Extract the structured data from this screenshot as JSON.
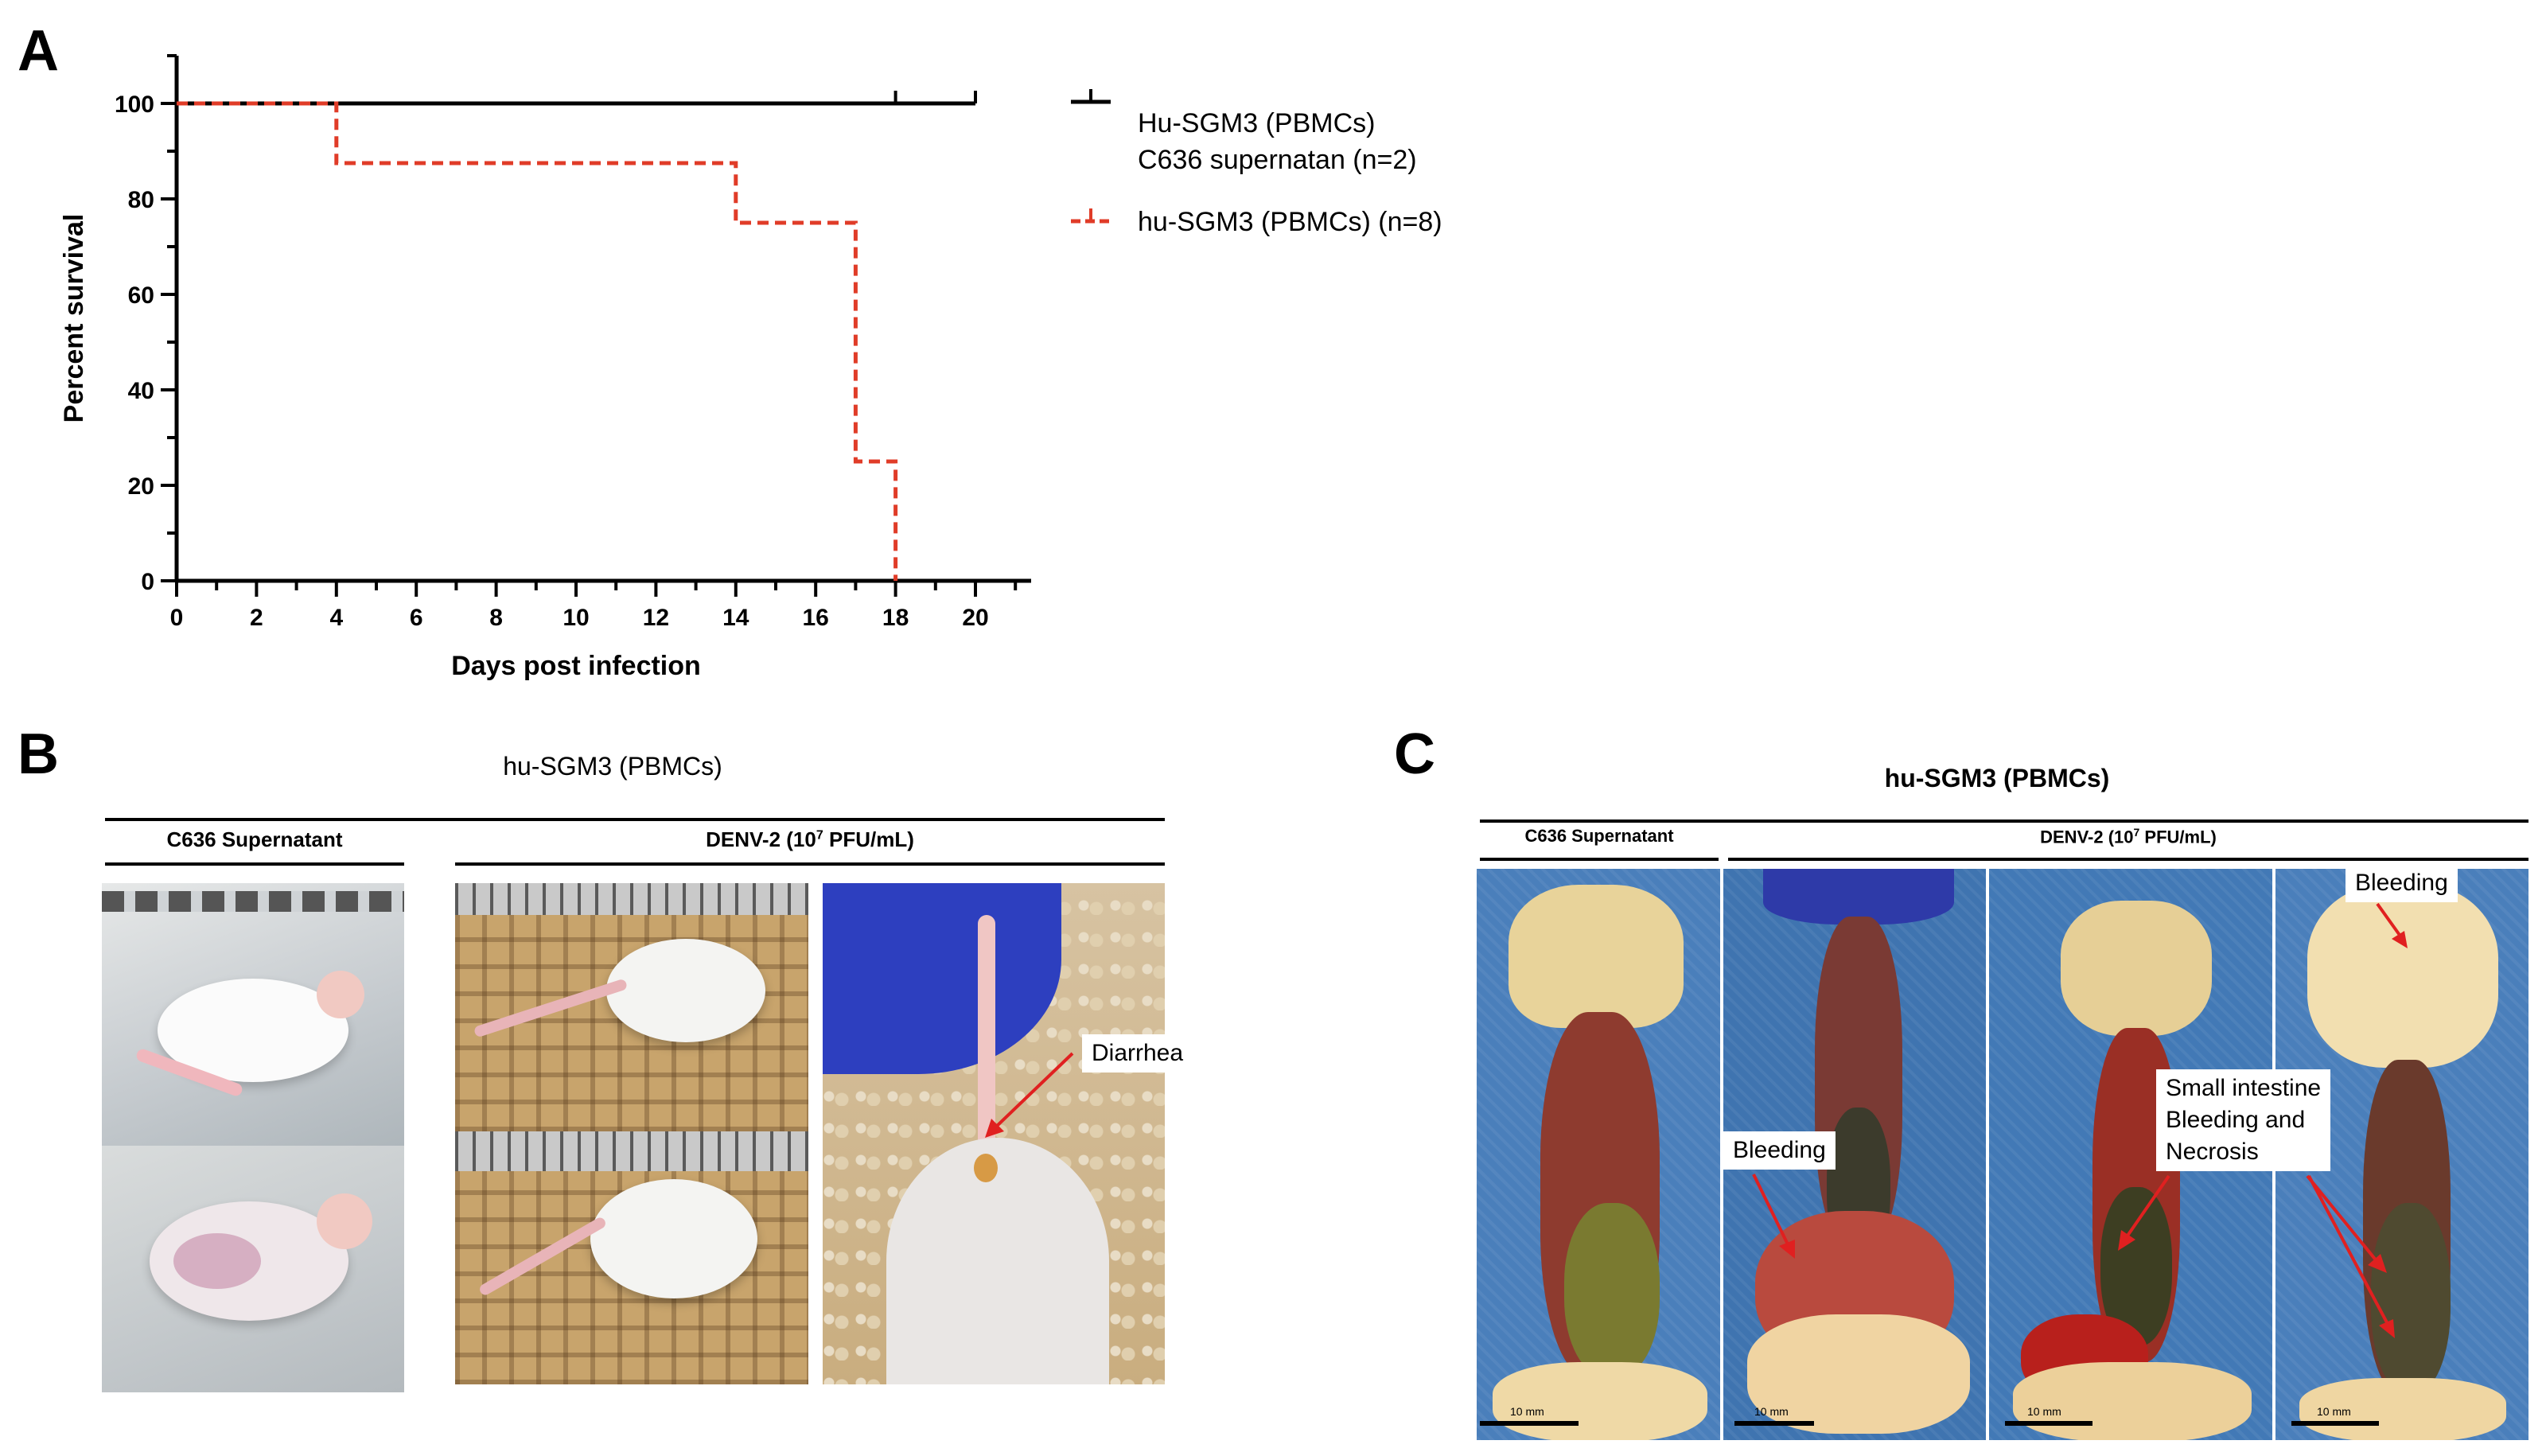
{
  "panels": {
    "a": "A",
    "b": "B",
    "c": "C"
  },
  "chart_data": {
    "type": "line",
    "subtype": "kaplan-meier-survival",
    "xlabel": "Days post  infection",
    "ylabel": "Percent survival",
    "xlim": [
      0,
      20
    ],
    "ylim": [
      0,
      100
    ],
    "x_ticks": [
      0,
      2,
      4,
      6,
      8,
      10,
      12,
      14,
      16,
      18,
      20
    ],
    "y_ticks": [
      0,
      20,
      40,
      60,
      80,
      100
    ],
    "legend_position": "right",
    "series": [
      {
        "name": "Hu-SGM3 (PBMCs)\nC636 supernatan (n=2)",
        "name_lines": [
          "Hu-SGM3 (PBMCs)",
          "C636 supernatan (n=2)"
        ],
        "color": "#000000",
        "style": "solid",
        "steps": [
          [
            0,
            100
          ],
          [
            20,
            100
          ]
        ],
        "censor_marks": [
          18,
          20
        ]
      },
      {
        "name": "hu-SGM3 (PBMCs) (n=8)",
        "name_lines": [
          "hu-SGM3 (PBMCs) (n=8)"
        ],
        "color": "#e03c28",
        "style": "dashed",
        "steps": [
          [
            0,
            100
          ],
          [
            4,
            100
          ],
          [
            4,
            87.5
          ],
          [
            14,
            87.5
          ],
          [
            14,
            75
          ],
          [
            17,
            75
          ],
          [
            17,
            25
          ],
          [
            18,
            25
          ],
          [
            18,
            0
          ]
        ],
        "censor_marks": []
      }
    ]
  },
  "panel_b": {
    "title": "hu-SGM3 (PBMCs)",
    "group_control": "C636 Supernatant",
    "group_infected_prefix": "DENV-2 (10",
    "group_infected_exp": "7",
    "group_infected_suffix": " PFU/mL)",
    "annotation": "Diarrhea"
  },
  "panel_c": {
    "title": "hu-SGM3 (PBMCs)",
    "group_control": "C636 Supernatant",
    "group_infected_prefix": "DENV-2 (10",
    "group_infected_exp": "7",
    "group_infected_suffix": " PFU/mL)",
    "annotation_bleeding_1": "Bleeding",
    "annotation_bleeding_2": "Bleeding",
    "annotation_intestine": [
      "Small intestine",
      "Bleeding and",
      "Necrosis"
    ],
    "scale_label": "10 mm"
  },
  "colors": {
    "accent_red": "#e03c28",
    "photo_blue_mat": "#3f74b0",
    "cage_floor": "#c8a46c"
  }
}
